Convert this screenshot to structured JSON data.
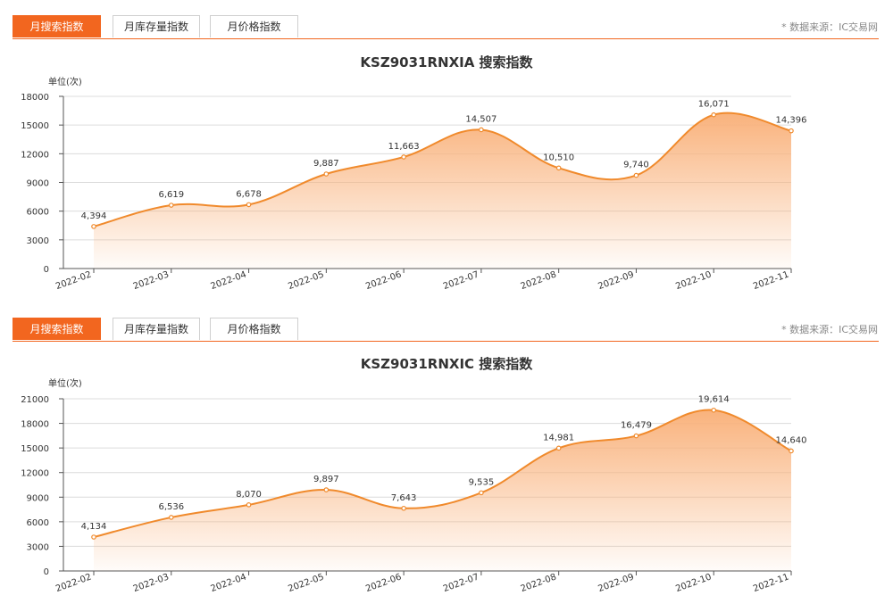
{
  "tabs": [
    "月搜索指数",
    "月库存量指数",
    "月价格指数"
  ],
  "source": "* 数据来源：IC交易网",
  "accent": "#f2661f",
  "line_color": "#f08a2c",
  "fill_top": "#f9b27c",
  "chart_data": [
    {
      "type": "area",
      "title": "KSZ9031RNXIA 搜索指数",
      "unit": "单位(次)",
      "x": [
        "2022-02",
        "2022-03",
        "2022-04",
        "2022-05",
        "2022-06",
        "2022-07",
        "2022-08",
        "2022-09",
        "2022-10",
        "2022-11"
      ],
      "series": [
        {
          "values": [
            4394,
            6619,
            6678,
            9887,
            11663,
            14507,
            10510,
            9740,
            16071,
            14396
          ]
        }
      ],
      "data_labels": [
        "4,394",
        "6,619",
        "6,678",
        "9,887",
        "11,663",
        "14,507",
        "10,510",
        "9,740",
        "16,071",
        "14,396"
      ],
      "ylim": [
        0,
        18000
      ],
      "yticks": [
        "0",
        "3000",
        "6000",
        "9000",
        "12000",
        "15000",
        "18000"
      ],
      "grid": true
    },
    {
      "type": "area",
      "title": "KSZ9031RNXIC 搜索指数",
      "unit": "单位(次)",
      "x": [
        "2022-02",
        "2022-03",
        "2022-04",
        "2022-05",
        "2022-06",
        "2022-07",
        "2022-08",
        "2022-09",
        "2022-10",
        "2022-11"
      ],
      "series": [
        {
          "values": [
            4134,
            6536,
            8070,
            9897,
            7643,
            9535,
            14981,
            16479,
            19614,
            14640
          ]
        }
      ],
      "data_labels": [
        "4,134",
        "6,536",
        "8,070",
        "9,897",
        "7,643",
        "9,535",
        "14,981",
        "16,479",
        "19,614",
        "14,640"
      ],
      "ylim": [
        0,
        21000
      ],
      "yticks": [
        "0",
        "3000",
        "6000",
        "9000",
        "12000",
        "15000",
        "18000",
        "21000"
      ],
      "grid": true
    }
  ]
}
